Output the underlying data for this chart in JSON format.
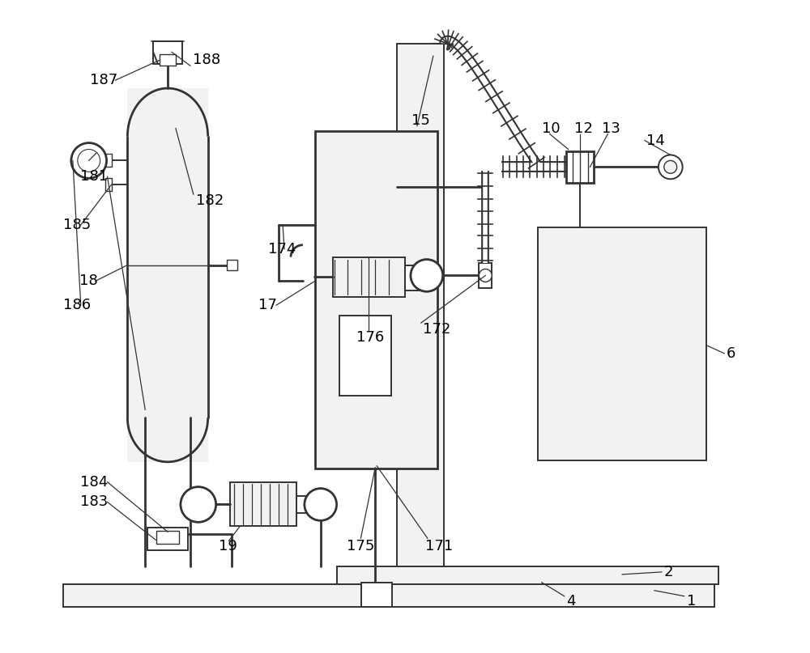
{
  "bg_color": "#ffffff",
  "line_color": "#333333",
  "light_fill": "#f2f2f2",
  "white": "#ffffff"
}
